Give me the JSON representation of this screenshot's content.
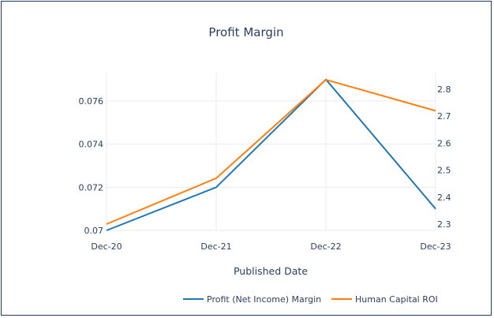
{
  "chart_data": {
    "type": "line",
    "title": "Profit Margin",
    "xlabel": "Published Date",
    "categories": [
      "Dec-20",
      "Dec-21",
      "Dec-22",
      "Dec-23"
    ],
    "series": [
      {
        "name": "Profit (Net Income) Margin",
        "axis": "left",
        "color": "#1f77b4",
        "values": [
          0.07,
          0.072,
          0.077,
          0.071
        ]
      },
      {
        "name": "Human Capital ROI",
        "axis": "right",
        "color": "#ff7f0e",
        "values": [
          2.3,
          2.47,
          2.835,
          2.72
        ]
      }
    ],
    "y_left": {
      "range": [
        0.07,
        0.0772
      ],
      "ticks": [
        "0.07",
        "0.072",
        "0.074",
        "0.076"
      ]
    },
    "y_right": {
      "range": [
        2.3,
        2.845
      ],
      "ticks": [
        "2.3",
        "2.4",
        "2.5",
        "2.6",
        "2.7",
        "2.8"
      ]
    },
    "grid": true,
    "legend_position": "bottom-right"
  }
}
